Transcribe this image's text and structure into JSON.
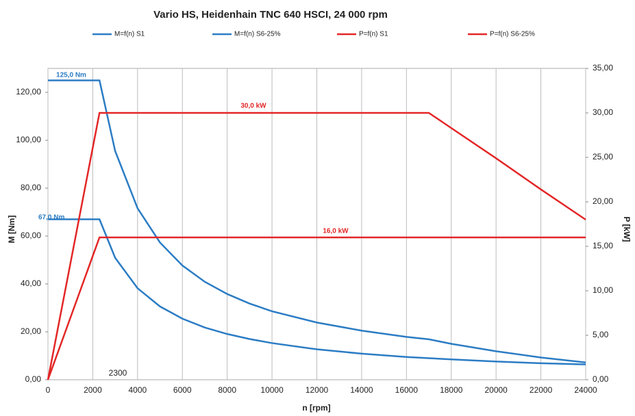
{
  "chart_data": {
    "type": "line",
    "title": "Vario HS, Heidenhain TNC 640 HSCI, 24 000 rpm",
    "x_label": "n [rpm]",
    "y_label": "M [Nm]",
    "y2_label": "P [kW]",
    "x": [
      0,
      2300,
      3000,
      4000,
      5000,
      6000,
      7000,
      8000,
      9000,
      10000,
      12000,
      14000,
      16000,
      17000,
      18000,
      20000,
      22000,
      24000
    ],
    "series": [
      {
        "name": "M=f(n) S1",
        "color": "#2b7cc4",
        "axis": "y",
        "values": [
          67,
          67,
          50.9,
          38.2,
          30.6,
          25.5,
          21.8,
          19.1,
          17,
          15.3,
          12.7,
          10.9,
          9.5,
          9,
          8.5,
          7.6,
          6.9,
          6.4
        ]
      },
      {
        "name": "M=f(n) S6-25%",
        "color": "#2b7cc4",
        "axis": "y",
        "values": [
          125,
          125,
          95.5,
          71.6,
          57.3,
          47.7,
          40.9,
          35.8,
          31.8,
          28.6,
          23.9,
          20.5,
          17.9,
          16.9,
          15,
          11.9,
          9.3,
          7.2
        ]
      },
      {
        "name": "P=f(n) S1",
        "color": "#e32626",
        "axis": "y2",
        "values": [
          0,
          16,
          16,
          16,
          16,
          16,
          16,
          16,
          16,
          16,
          16,
          16,
          16,
          16,
          16,
          16,
          16,
          16
        ]
      },
      {
        "name": "P=f(n) S6-25%",
        "color": "#e32626",
        "axis": "y2",
        "values": [
          0,
          30,
          30,
          30,
          30,
          30,
          30,
          30,
          30,
          30,
          30,
          30,
          30,
          30,
          28.3,
          24.9,
          21.4,
          18
        ]
      }
    ],
    "annotations": [
      "125,0 Nm",
      "67,0 Nm",
      "30,0 kW",
      "16,0 kW",
      "2300"
    ],
    "xlim": [
      0,
      24000
    ],
    "xticks": [
      0,
      2000,
      4000,
      6000,
      8000,
      10000,
      12000,
      14000,
      16000,
      18000,
      20000,
      22000,
      24000
    ],
    "ylim": [
      0,
      130
    ],
    "yticks": [
      {
        "value": 0,
        "label": "0,00"
      },
      {
        "value": 20,
        "label": "20,00"
      },
      {
        "value": 40,
        "label": "40,00"
      },
      {
        "value": 60,
        "label": "60,00"
      },
      {
        "value": 80,
        "label": "80,00"
      },
      {
        "value": 100,
        "label": "100,00"
      },
      {
        "value": 120,
        "label": "120,00"
      }
    ],
    "y2lim": [
      0,
      35
    ],
    "y2ticks": [
      {
        "value": 0,
        "label": "0,00"
      },
      {
        "value": 5,
        "label": "5,00"
      },
      {
        "value": 10,
        "label": "10,00"
      },
      {
        "value": 15,
        "label": "15,00"
      },
      {
        "value": 20,
        "label": "20,00"
      },
      {
        "value": 25,
        "label": "25,00"
      },
      {
        "value": 30,
        "label": "30,00"
      },
      {
        "value": 35,
        "label": "35,00"
      }
    ],
    "grid": "x"
  }
}
